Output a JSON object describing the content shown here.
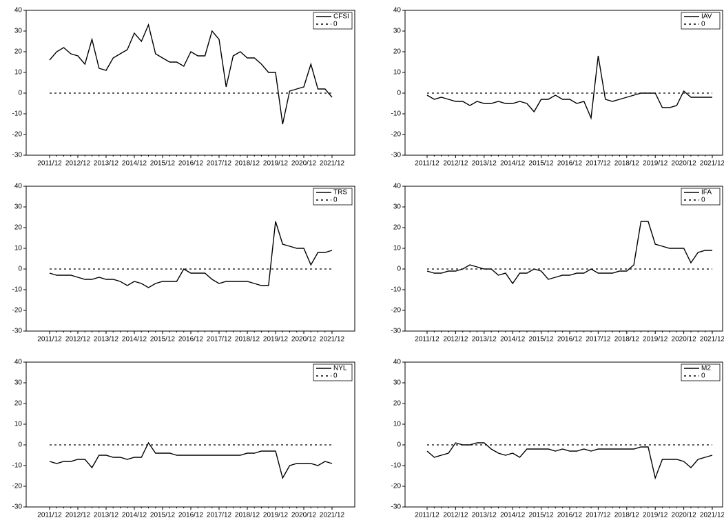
{
  "chart_data": [
    {
      "type": "line",
      "ylim": [
        -30,
        40
      ],
      "yticks": [
        -30,
        -20,
        -10,
        0,
        10,
        20,
        30,
        40
      ],
      "categories": [
        "2011/12",
        null,
        null,
        null,
        "2012/12",
        null,
        null,
        null,
        "2013/12",
        null,
        null,
        null,
        "2014/12",
        null,
        null,
        null,
        "2015/12",
        null,
        null,
        null,
        "2016/12",
        null,
        null,
        null,
        "2017/12",
        null,
        null,
        null,
        "2018/12",
        null,
        null,
        null,
        "2019/12",
        null,
        null,
        null,
        "2020/12",
        null,
        null,
        null,
        "2021/12"
      ],
      "series": [
        {
          "name": "CFSI",
          "color": "#000000",
          "style": "solid",
          "values": [
            16,
            20,
            22,
            19,
            18,
            14,
            26,
            12,
            11,
            17,
            19,
            21,
            29,
            25,
            33,
            19,
            17,
            15,
            15,
            13,
            20,
            18,
            18,
            30,
            26,
            3,
            18,
            20,
            17,
            17,
            14,
            10,
            10,
            -15,
            1,
            2,
            3,
            14,
            2,
            2,
            -2
          ]
        },
        {
          "name": "0",
          "color": "#000000",
          "style": "dashed",
          "values": [
            0,
            0,
            0,
            0,
            0,
            0,
            0,
            0,
            0,
            0,
            0,
            0,
            0,
            0,
            0,
            0,
            0,
            0,
            0,
            0,
            0,
            0,
            0,
            0,
            0,
            0,
            0,
            0,
            0,
            0,
            0,
            0,
            0,
            0,
            0,
            0,
            0,
            0,
            0,
            0,
            0
          ]
        }
      ]
    },
    {
      "type": "line",
      "ylim": [
        -30,
        40
      ],
      "yticks": [
        -30,
        -20,
        -10,
        0,
        10,
        20,
        30,
        40
      ],
      "categories": [
        "2011/12",
        null,
        null,
        null,
        "2012/12",
        null,
        null,
        null,
        "2013/12",
        null,
        null,
        null,
        "2014/12",
        null,
        null,
        null,
        "2015/12",
        null,
        null,
        null,
        "2016/12",
        null,
        null,
        null,
        "2017/12",
        null,
        null,
        null,
        "2018/12",
        null,
        null,
        null,
        "2019/12",
        null,
        null,
        null,
        "2020/12",
        null,
        null,
        null,
        "2021/12"
      ],
      "series": [
        {
          "name": "IAV",
          "color": "#000000",
          "style": "solid",
          "values": [
            -1,
            -3,
            -2,
            -3,
            -4,
            -4,
            -6,
            -4,
            -5,
            -5,
            -4,
            -5,
            -5,
            -4,
            -5,
            -9,
            -3,
            -3,
            -1,
            -3,
            -3,
            -5,
            -4,
            -12,
            18,
            -3,
            -4,
            -3,
            -2,
            -1,
            0,
            0,
            0,
            -7,
            -7,
            -6,
            1,
            -2,
            -2,
            -2,
            -2
          ]
        },
        {
          "name": "0",
          "color": "#000000",
          "style": "dashed",
          "values": [
            0,
            0,
            0,
            0,
            0,
            0,
            0,
            0,
            0,
            0,
            0,
            0,
            0,
            0,
            0,
            0,
            0,
            0,
            0,
            0,
            0,
            0,
            0,
            0,
            0,
            0,
            0,
            0,
            0,
            0,
            0,
            0,
            0,
            0,
            0,
            0,
            0,
            0,
            0,
            0,
            0
          ]
        }
      ]
    },
    {
      "type": "line",
      "ylim": [
        -30,
        40
      ],
      "yticks": [
        -30,
        -20,
        -10,
        0,
        10,
        20,
        30,
        40
      ],
      "categories": [
        "2011/12",
        null,
        null,
        null,
        "2012/12",
        null,
        null,
        null,
        "2013/12",
        null,
        null,
        null,
        "2014/12",
        null,
        null,
        null,
        "2015/12",
        null,
        null,
        null,
        "2016/12",
        null,
        null,
        null,
        "2017/12",
        null,
        null,
        null,
        "2018/12",
        null,
        null,
        null,
        "2019/12",
        null,
        null,
        null,
        "2020/12",
        null,
        null,
        null,
        "2021/12"
      ],
      "series": [
        {
          "name": "TRS",
          "color": "#000000",
          "style": "solid",
          "values": [
            -2,
            -3,
            -3,
            -3,
            -4,
            -5,
            -5,
            -4,
            -5,
            -5,
            -6,
            -8,
            -6,
            -7,
            -9,
            -7,
            -6,
            -6,
            -6,
            0,
            -2,
            -2,
            -2,
            -5,
            -7,
            -6,
            -6,
            -6,
            -6,
            -7,
            -8,
            -8,
            23,
            12,
            11,
            10,
            10,
            2,
            8,
            8,
            9
          ]
        },
        {
          "name": "0",
          "color": "#000000",
          "style": "dashed",
          "values": [
            0,
            0,
            0,
            0,
            0,
            0,
            0,
            0,
            0,
            0,
            0,
            0,
            0,
            0,
            0,
            0,
            0,
            0,
            0,
            0,
            0,
            0,
            0,
            0,
            0,
            0,
            0,
            0,
            0,
            0,
            0,
            0,
            0,
            0,
            0,
            0,
            0,
            0,
            0,
            0,
            0
          ]
        }
      ]
    },
    {
      "type": "line",
      "ylim": [
        -30,
        40
      ],
      "yticks": [
        -30,
        -20,
        -10,
        0,
        10,
        20,
        30,
        40
      ],
      "categories": [
        "2011/12",
        null,
        null,
        null,
        "2012/12",
        null,
        null,
        null,
        "2013/12",
        null,
        null,
        null,
        "2014/12",
        null,
        null,
        null,
        "2015/12",
        null,
        null,
        null,
        "2016/12",
        null,
        null,
        null,
        "2017/12",
        null,
        null,
        null,
        "2018/12",
        null,
        null,
        null,
        "2019/12",
        null,
        null,
        null,
        "2020/12",
        null,
        null,
        null,
        "2021/12"
      ],
      "series": [
        {
          "name": "IFA",
          "color": "#000000",
          "style": "solid",
          "values": [
            -1,
            -2,
            -2,
            -1,
            -1,
            0,
            2,
            1,
            0,
            0,
            -3,
            -2,
            -7,
            -2,
            -2,
            0,
            -1,
            -5,
            -4,
            -3,
            -3,
            -2,
            -2,
            0,
            -2,
            -2,
            -2,
            -1,
            -1,
            2,
            23,
            23,
            12,
            11,
            10,
            10,
            10,
            3,
            8,
            9,
            9
          ]
        },
        {
          "name": "0",
          "color": "#000000",
          "style": "dashed",
          "values": [
            0,
            0,
            0,
            0,
            0,
            0,
            0,
            0,
            0,
            0,
            0,
            0,
            0,
            0,
            0,
            0,
            0,
            0,
            0,
            0,
            0,
            0,
            0,
            0,
            0,
            0,
            0,
            0,
            0,
            0,
            0,
            0,
            0,
            0,
            0,
            0,
            0,
            0,
            0,
            0,
            0
          ]
        }
      ]
    },
    {
      "type": "line",
      "ylim": [
        -30,
        40
      ],
      "yticks": [
        -30,
        -20,
        -10,
        0,
        10,
        20,
        30,
        40
      ],
      "categories": [
        "2011/12",
        null,
        null,
        null,
        "2012/12",
        null,
        null,
        null,
        "2013/12",
        null,
        null,
        null,
        "2014/12",
        null,
        null,
        null,
        "2015/12",
        null,
        null,
        null,
        "2016/12",
        null,
        null,
        null,
        "2017/12",
        null,
        null,
        null,
        "2018/12",
        null,
        null,
        null,
        "2019/12",
        null,
        null,
        null,
        "2020/12",
        null,
        null,
        null,
        "2021/12"
      ],
      "series": [
        {
          "name": "NYL",
          "color": "#000000",
          "style": "solid",
          "values": [
            -8,
            -9,
            -8,
            -8,
            -7,
            -7,
            -11,
            -5,
            -5,
            -6,
            -6,
            -7,
            -6,
            -6,
            1,
            -4,
            -4,
            -4,
            -5,
            -5,
            -5,
            -5,
            -5,
            -5,
            -5,
            -5,
            -5,
            -5,
            -4,
            -4,
            -3,
            -3,
            -3,
            -16,
            -10,
            -9,
            -9,
            -9,
            -10,
            -8,
            -9
          ]
        },
        {
          "name": "0",
          "color": "#000000",
          "style": "dashed",
          "values": [
            0,
            0,
            0,
            0,
            0,
            0,
            0,
            0,
            0,
            0,
            0,
            0,
            0,
            0,
            0,
            0,
            0,
            0,
            0,
            0,
            0,
            0,
            0,
            0,
            0,
            0,
            0,
            0,
            0,
            0,
            0,
            0,
            0,
            0,
            0,
            0,
            0,
            0,
            0,
            0,
            0
          ]
        }
      ]
    },
    {
      "type": "line",
      "ylim": [
        -30,
        40
      ],
      "yticks": [
        -30,
        -20,
        -10,
        0,
        10,
        20,
        30,
        40
      ],
      "categories": [
        "2011/12",
        null,
        null,
        null,
        "2012/12",
        null,
        null,
        null,
        "2013/12",
        null,
        null,
        null,
        "2014/12",
        null,
        null,
        null,
        "2015/12",
        null,
        null,
        null,
        "2016/12",
        null,
        null,
        null,
        "2017/12",
        null,
        null,
        null,
        "2018/12",
        null,
        null,
        null,
        "2019/12",
        null,
        null,
        null,
        "2020/12",
        null,
        null,
        null,
        "2021/12"
      ],
      "series": [
        {
          "name": "M2",
          "color": "#000000",
          "style": "solid",
          "values": [
            -3,
            -6,
            -5,
            -4,
            1,
            0,
            0,
            1,
            1,
            -2,
            -4,
            -5,
            -4,
            -6,
            -2,
            -2,
            -2,
            -2,
            -3,
            -2,
            -3,
            -3,
            -2,
            -3,
            -2,
            -2,
            -2,
            -2,
            -2,
            -2,
            -1,
            -1,
            -16,
            -7,
            -7,
            -7,
            -8,
            -11,
            -7,
            -6,
            -5
          ]
        },
        {
          "name": "0",
          "color": "#000000",
          "style": "dashed",
          "values": [
            0,
            0,
            0,
            0,
            0,
            0,
            0,
            0,
            0,
            0,
            0,
            0,
            0,
            0,
            0,
            0,
            0,
            0,
            0,
            0,
            0,
            0,
            0,
            0,
            0,
            0,
            0,
            0,
            0,
            0,
            0,
            0,
            0,
            0,
            0,
            0,
            0,
            0,
            0,
            0,
            0
          ]
        }
      ]
    }
  ]
}
